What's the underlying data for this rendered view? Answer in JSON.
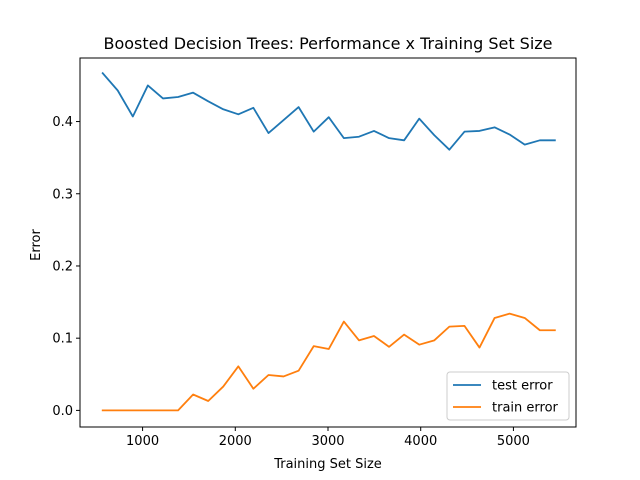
{
  "chart_data": {
    "type": "line",
    "title": "Boosted Decision Trees: Performance x Training Set Size",
    "xlabel": "Training Set Size",
    "ylabel": "Error",
    "xlim": [
      325,
      5675
    ],
    "ylim": [
      -0.023,
      0.488
    ],
    "xticks": [
      1000,
      2000,
      3000,
      4000,
      5000
    ],
    "yticks": [
      0.0,
      0.1,
      0.2,
      0.3,
      0.4
    ],
    "ytick_labels": [
      "0.0",
      "0.1",
      "0.2",
      "0.3",
      "0.4"
    ],
    "grid": false,
    "legend_position": "lower-right",
    "x": [
      570,
      732,
      895,
      1057,
      1220,
      1383,
      1545,
      1708,
      1870,
      2033,
      2195,
      2358,
      2521,
      2683,
      2846,
      3008,
      3171,
      3334,
      3496,
      3659,
      3821,
      3984,
      4147,
      4309,
      4472,
      4634,
      4797,
      4959,
      5122,
      5285,
      5447
    ],
    "series": [
      {
        "name": "test error",
        "color": "#1f77b4",
        "values": [
          0.467,
          0.443,
          0.407,
          0.45,
          0.432,
          0.434,
          0.44,
          0.428,
          0.417,
          0.41,
          0.419,
          0.384,
          0.402,
          0.42,
          0.386,
          0.406,
          0.377,
          0.379,
          0.387,
          0.377,
          0.374,
          0.404,
          0.381,
          0.361,
          0.386,
          0.387,
          0.392,
          0.382,
          0.368,
          0.374,
          0.374
        ]
      },
      {
        "name": "train error",
        "color": "#ff7f0e",
        "values": [
          0.0,
          0.0,
          0.0,
          0.0,
          0.0,
          0.0,
          0.022,
          0.013,
          0.033,
          0.061,
          0.03,
          0.049,
          0.047,
          0.055,
          0.089,
          0.085,
          0.123,
          0.097,
          0.103,
          0.088,
          0.105,
          0.091,
          0.097,
          0.116,
          0.117,
          0.087,
          0.128,
          0.134,
          0.128,
          0.111,
          0.111
        ]
      }
    ]
  }
}
